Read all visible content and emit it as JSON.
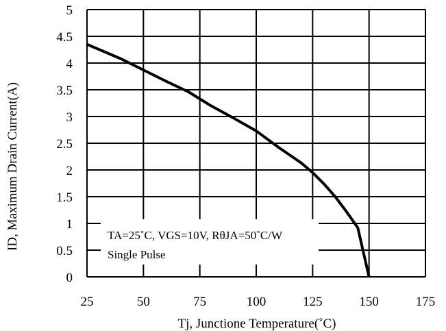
{
  "chart_data": {
    "type": "line",
    "xlabel": "Tj, Junctione Temperature(˚C)",
    "ylabel": "ID, Maximum Drain Current(A)",
    "xlim": [
      25,
      175
    ],
    "ylim": [
      0,
      5
    ],
    "x_ticks": [
      25,
      50,
      75,
      100,
      125,
      150,
      175
    ],
    "y_ticks": [
      0,
      0.5,
      1,
      1.5,
      2,
      2.5,
      3,
      3.5,
      4,
      4.5,
      5
    ],
    "grid": true,
    "series": [
      {
        "x": [
          25,
          40,
          50,
          60,
          70,
          80,
          90,
          100,
          110,
          120,
          125,
          130,
          135,
          140,
          145,
          150
        ],
        "y": [
          4.35,
          4.08,
          3.87,
          3.66,
          3.46,
          3.2,
          2.97,
          2.73,
          2.42,
          2.13,
          1.95,
          1.74,
          1.5,
          1.22,
          0.92,
          0
        ]
      }
    ],
    "annotations": [
      "TA=25˚C, VGS=10V, RθJA=50˚C/W",
      "Single Pulse"
    ],
    "line_color": "#000000",
    "grid_color": "#000000"
  }
}
